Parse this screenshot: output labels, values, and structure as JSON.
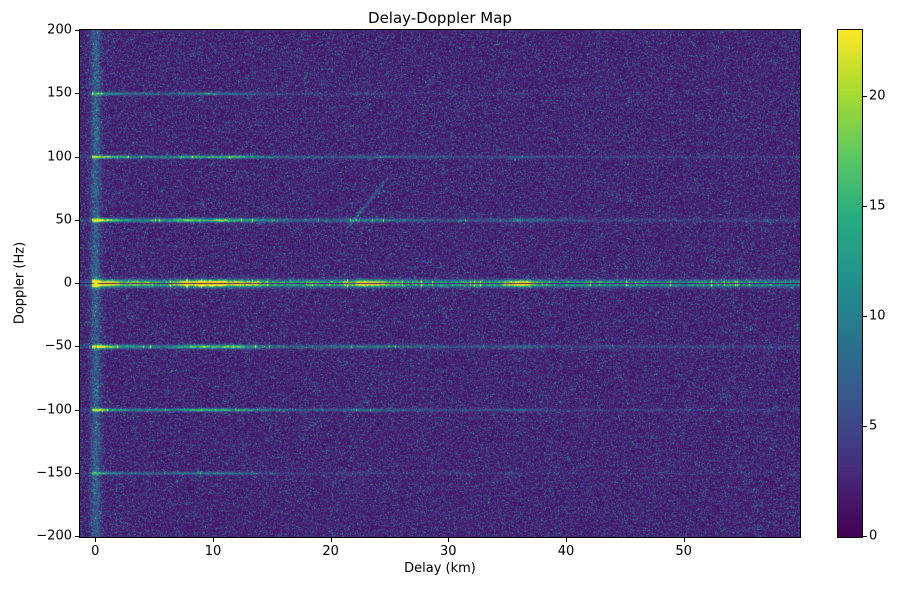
{
  "chart_data": {
    "type": "heatmap",
    "title": "Delay-Doppler Map",
    "xlabel": "Delay (km)",
    "ylabel": "Doppler (Hz)",
    "xlim": [
      -1.3,
      59.8
    ],
    "ylim": [
      -200,
      200
    ],
    "x_ticks": [
      {
        "value": 0,
        "label": "0"
      },
      {
        "value": 10,
        "label": "10"
      },
      {
        "value": 20,
        "label": "20"
      },
      {
        "value": 30,
        "label": "30"
      },
      {
        "value": 40,
        "label": "40"
      },
      {
        "value": 50,
        "label": "50"
      }
    ],
    "y_ticks": [
      {
        "value": 200,
        "label": "200"
      },
      {
        "value": 150,
        "label": "150"
      },
      {
        "value": 100,
        "label": "100"
      },
      {
        "value": 50,
        "label": "50"
      },
      {
        "value": 0,
        "label": "0"
      },
      {
        "value": -50,
        "label": "−50"
      },
      {
        "value": -100,
        "label": "−100"
      },
      {
        "value": -150,
        "label": "−150"
      },
      {
        "value": -200,
        "label": "−200"
      }
    ],
    "colormap": "viridis",
    "colorbar": {
      "vmin": 0,
      "vmax": 23,
      "ticks": [
        {
          "value": 0,
          "label": "0"
        },
        {
          "value": 5,
          "label": "5"
        },
        {
          "value": 10,
          "label": "10"
        },
        {
          "value": 15,
          "label": "15"
        },
        {
          "value": 20,
          "label": "20"
        }
      ]
    },
    "background_noise_mean": 3.0,
    "features": {
      "origin_peak": {
        "delay_km": 0,
        "doppler_hz": 0,
        "value": 23
      },
      "zero_delay_column": {
        "delay_km": 0,
        "intensity": 4.5,
        "width_km": 0.3
      },
      "doppler_lines": [
        {
          "doppler_hz": 0,
          "peak": 20,
          "decay_km": 35,
          "floor": 0.5,
          "sigma_hz": 1.8,
          "dark_core": true
        },
        {
          "doppler_hz": 50,
          "peak": 13,
          "decay_km": 20,
          "floor": 0.1,
          "sigma_hz": 1.0
        },
        {
          "doppler_hz": -50,
          "peak": 13,
          "decay_km": 20,
          "floor": 0.1,
          "sigma_hz": 1.0
        },
        {
          "doppler_hz": 100,
          "peak": 11,
          "decay_km": 20,
          "floor": 0.08,
          "sigma_hz": 0.8
        },
        {
          "doppler_hz": -100,
          "peak": 11,
          "decay_km": 20,
          "floor": 0.08,
          "sigma_hz": 0.8
        },
        {
          "doppler_hz": 150,
          "peak": 8,
          "decay_km": 10,
          "floor": 0.06,
          "sigma_hz": 0.8
        },
        {
          "doppler_hz": -150,
          "peak": 8,
          "decay_km": 10,
          "floor": 0.06,
          "sigma_hz": 0.8
        }
      ],
      "clutter_patch_delays_km": [
        0.0,
        8.5,
        10.5,
        12.5,
        23.3,
        36.0
      ],
      "diagonal_streak": {
        "delay_from_km": 21.5,
        "doppler_from_hz": 45,
        "delay_to_km": 24.5,
        "doppler_to_hz": 80,
        "intensity": 5
      }
    }
  }
}
